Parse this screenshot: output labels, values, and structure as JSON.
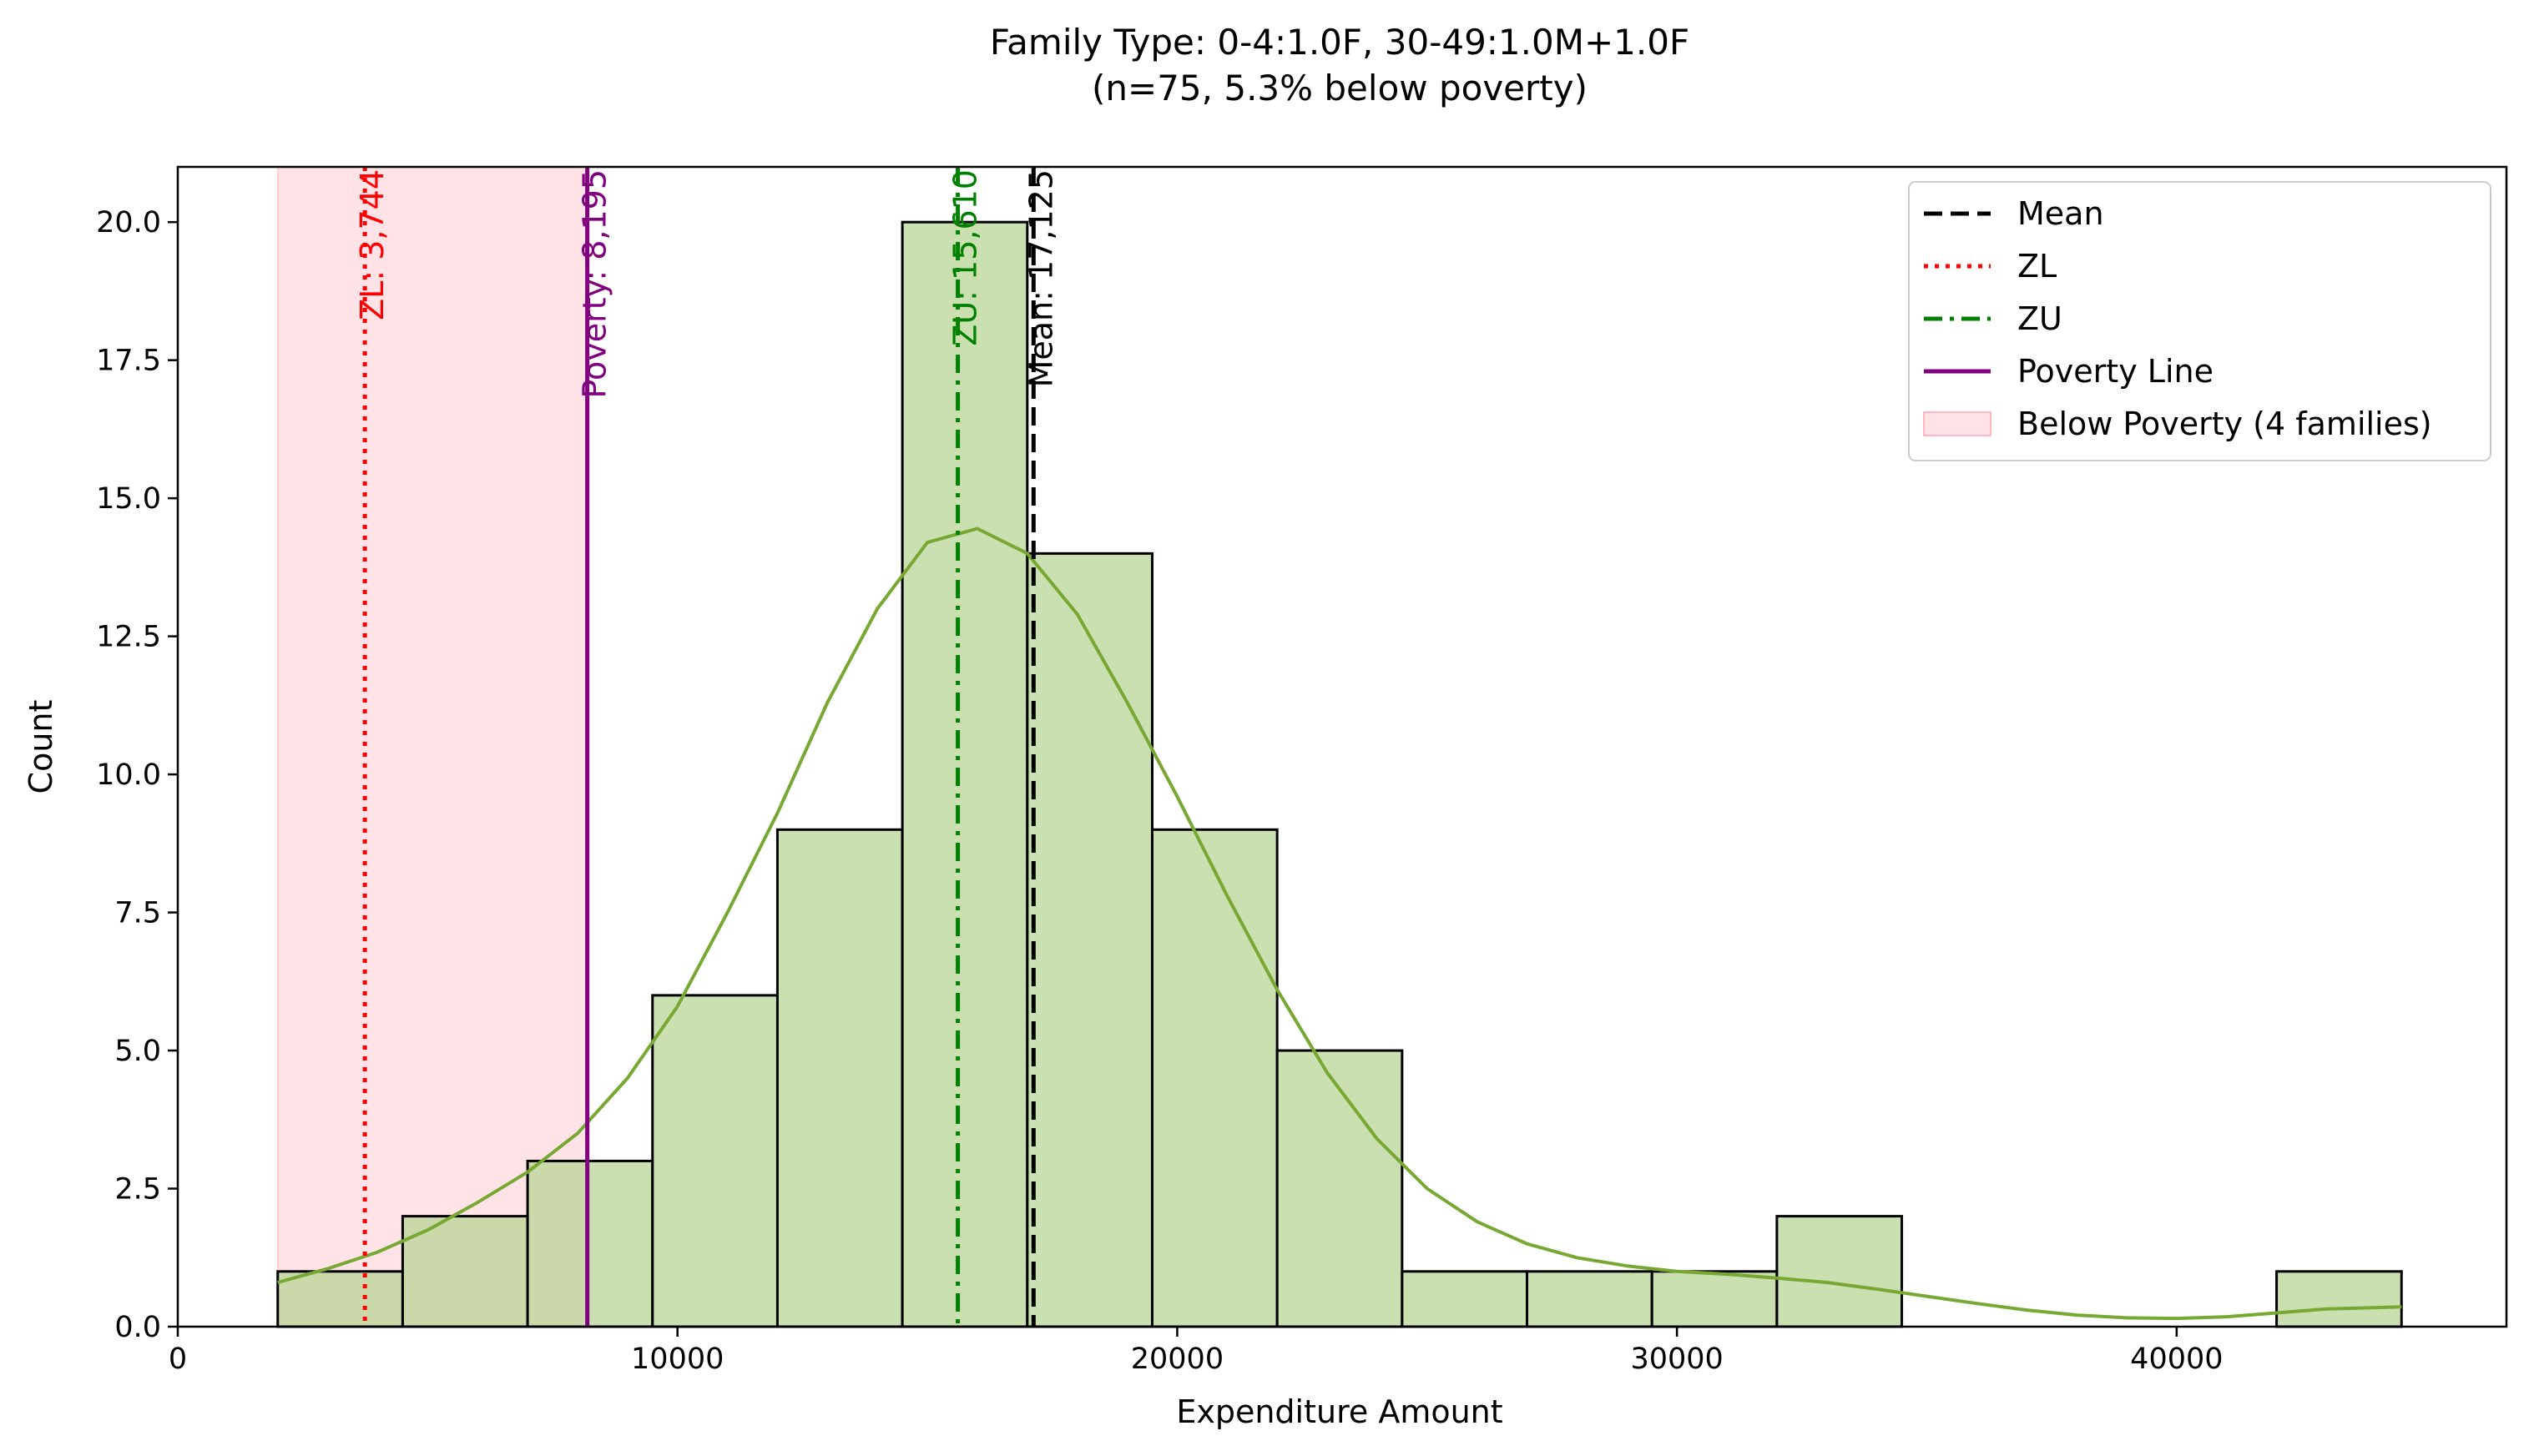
{
  "chart_data": {
    "type": "histogram",
    "title": "Family Type: 0-4:1.0F, 30-49:1.0M+1.0F",
    "subtitle": "(n=75, 5.3% below poverty)",
    "xlabel": "Expenditure Amount",
    "ylabel": "Count",
    "xlim": [
      0,
      46600
    ],
    "ylim": [
      0,
      21
    ],
    "x_ticks": [
      0,
      10000,
      20000,
      30000,
      40000
    ],
    "y_ticks": [
      0.0,
      2.5,
      5.0,
      7.5,
      10.0,
      12.5,
      15.0,
      17.5,
      20.0
    ],
    "x_tick_labels": [
      "0",
      "10000",
      "20000",
      "30000",
      "40000"
    ],
    "y_tick_labels": [
      "0.0",
      "2.5",
      "5.0",
      "7.5",
      "10.0",
      "12.5",
      "15.0",
      "17.5",
      "20.0"
    ],
    "grid": false,
    "bars_color": "#b9d595",
    "bars_edge_color": "#000000",
    "bins": [
      {
        "x0": 2000,
        "x1": 4500,
        "count": 1
      },
      {
        "x0": 4500,
        "x1": 7000,
        "count": 2
      },
      {
        "x0": 7000,
        "x1": 9500,
        "count": 3
      },
      {
        "x0": 9500,
        "x1": 12000,
        "count": 6
      },
      {
        "x0": 12000,
        "x1": 14500,
        "count": 9
      },
      {
        "x0": 14500,
        "x1": 17000,
        "count": 20
      },
      {
        "x0": 17000,
        "x1": 19500,
        "count": 14
      },
      {
        "x0": 19500,
        "x1": 22000,
        "count": 9
      },
      {
        "x0": 22000,
        "x1": 24500,
        "count": 5
      },
      {
        "x0": 24500,
        "x1": 27000,
        "count": 1
      },
      {
        "x0": 27000,
        "x1": 29500,
        "count": 1
      },
      {
        "x0": 29500,
        "x1": 32000,
        "count": 1
      },
      {
        "x0": 32000,
        "x1": 34500,
        "count": 2
      },
      {
        "x0": 34500,
        "x1": 37000,
        "count": 0
      },
      {
        "x0": 37000,
        "x1": 39500,
        "count": 0
      },
      {
        "x0": 39500,
        "x1": 42000,
        "count": 0
      },
      {
        "x0": 42000,
        "x1": 44500,
        "count": 1
      }
    ],
    "kde": {
      "color": "#77a832",
      "x": [
        2000,
        3000,
        4000,
        5000,
        6000,
        7000,
        8000,
        9000,
        10000,
        11000,
        12000,
        13000,
        14000,
        15000,
        16000,
        17000,
        18000,
        19000,
        20000,
        21000,
        22000,
        23000,
        24000,
        25000,
        26000,
        27000,
        28000,
        29000,
        30000,
        31000,
        32000,
        33000,
        34000,
        35000,
        36000,
        37000,
        38000,
        39000,
        40000,
        41000,
        42000,
        43000,
        44500
      ],
      "y": [
        0.8,
        1.05,
        1.35,
        1.75,
        2.25,
        2.8,
        3.5,
        4.5,
        5.8,
        7.5,
        9.3,
        11.3,
        13.0,
        14.2,
        14.45,
        14.0,
        12.9,
        11.3,
        9.6,
        7.8,
        6.1,
        4.6,
        3.4,
        2.5,
        1.9,
        1.5,
        1.25,
        1.1,
        1.0,
        0.95,
        0.88,
        0.8,
        0.68,
        0.55,
        0.42,
        0.3,
        0.21,
        0.16,
        0.15,
        0.18,
        0.25,
        0.32,
        0.36
      ]
    },
    "poverty_span": {
      "x0": 2000,
      "x1": 8195,
      "color": "#ffb6c1",
      "label": "Below Poverty (4 families)"
    },
    "vlines": [
      {
        "name": "ZL",
        "x": 3744,
        "color": "#ff0000",
        "style": "dotted",
        "label": "ZL: 3,744"
      },
      {
        "name": "Poverty Line",
        "x": 8195,
        "color": "#800080",
        "style": "solid",
        "label": "Poverty: 8,195"
      },
      {
        "name": "ZU",
        "x": 15610,
        "color": "#008000",
        "style": "dashdot",
        "label": "ZU: 15,610"
      },
      {
        "name": "Mean",
        "x": 17125,
        "color": "#000000",
        "style": "dashed",
        "label": "Mean: 17,125"
      }
    ],
    "legend": {
      "placement": "top-right",
      "entries": [
        {
          "label": "Mean",
          "color": "#000000",
          "style": "dashed"
        },
        {
          "label": "ZL",
          "color": "#ff0000",
          "style": "dotted"
        },
        {
          "label": "ZU",
          "color": "#008000",
          "style": "dashdot"
        },
        {
          "label": "Poverty Line",
          "color": "#800080",
          "style": "solid"
        },
        {
          "label": "Below Poverty (4 families)",
          "color": "#ffb6c1",
          "style": "patch"
        }
      ]
    }
  }
}
